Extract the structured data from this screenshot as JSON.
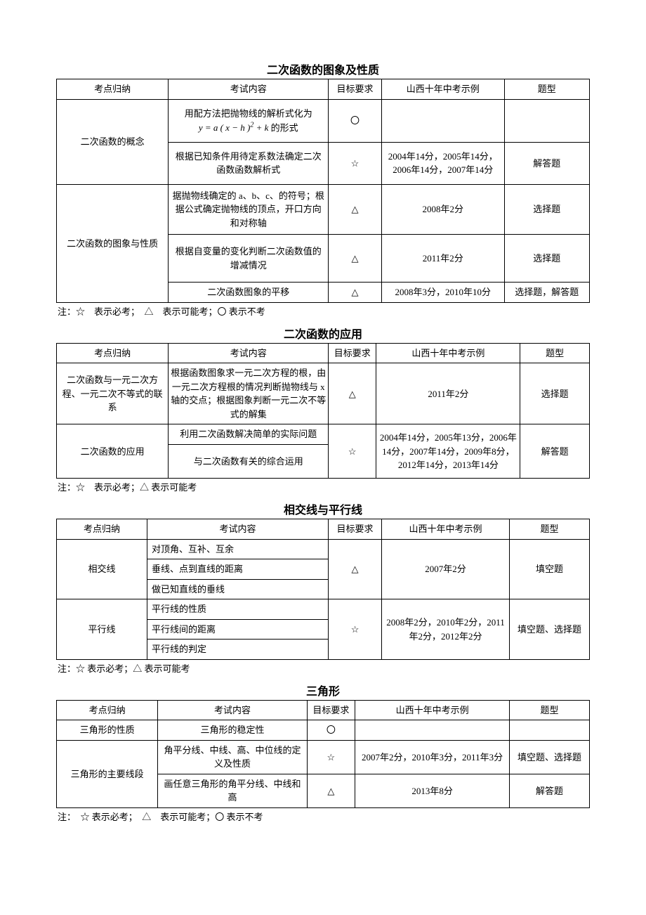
{
  "symbols": {
    "star": "☆",
    "tri": "△",
    "circ": "〇"
  },
  "headers": {
    "c1": "考点归纳",
    "c2": "考试内容",
    "c3": "目标要求",
    "c4": "山西十年中考示例",
    "c5": "题型"
  },
  "section1": {
    "title": "二次函数的图象及性质",
    "note": "注：☆　表示必考；　△　表示可能考；〇 表示不考",
    "rows": [
      {
        "cat": "二次函数的概念",
        "content_html": "用配方法把抛物线的解析式化为<br><span class='formula'>y = a ( x − h )<sup>2</sup> + k</span> 的形式",
        "req": "〇",
        "ex": "",
        "type": ""
      },
      {
        "content": "根据已知条件用待定系数法确定二次函数函数解析式",
        "req": "☆",
        "ex": "2004年14分，2005年14分，2006年14分，2007年14分",
        "type": "解答题"
      },
      {
        "cat": "二次函数的图象与性质",
        "content": "据抛物线确定的 a、b、c、的符号；根据公式确定抛物线的顶点，开口方向和对称轴",
        "req": "△",
        "ex": "2008年2分",
        "type": "选择题"
      },
      {
        "content": "根据自变量的变化判断二次函数值的增减情况",
        "req": "△",
        "ex": "2011年2分",
        "type": "选择题"
      },
      {
        "content": "二次函数图象的平移",
        "req": "△",
        "ex": "2008年3分，2010年10分",
        "type": "选择题，解答题"
      }
    ]
  },
  "section2": {
    "title": "二次函数的应用",
    "note": "注：☆　表示必考；△ 表示可能考",
    "rows": [
      {
        "cat": "二次函数与一元二次方程、一元二次不等式的联系",
        "content": "根据函数图象求一元二次方程的根，由一元二次方程根的情况判断抛物线与 x 轴的交点；根据图象判断一元二次不等式的解集",
        "req": "△",
        "ex": "2011年2分",
        "type": "选择题"
      },
      {
        "cat": "二次函数的应用",
        "content": "利用二次函数解决简单的实际问题",
        "req": "☆",
        "ex": "2004年14分，2005年13分，2006年14分，2007年14分，2009年8分，2012年14分，2013年14分",
        "type": "解答题"
      },
      {
        "content": "与二次函数有关的综合运用"
      }
    ]
  },
  "section3": {
    "title": "相交线与平行线",
    "note": "注：☆ 表示必考；△ 表示可能考",
    "rows": [
      {
        "cat": "相交线",
        "content": "对顶角、互补、互余",
        "req": "△",
        "ex": "2007年2分",
        "type": "填空题"
      },
      {
        "content": "垂线、点到直线的距离"
      },
      {
        "content": "做已知直线的垂线"
      },
      {
        "cat": "平行线",
        "content": "平行线的性质",
        "req": "☆",
        "ex": "2008年2分，2010年2分，2011年2分，2012年2分",
        "type": "填空题、选择题"
      },
      {
        "content": "平行线间的距离"
      },
      {
        "content": "平行线的判定"
      }
    ]
  },
  "section4": {
    "title": "三角形",
    "note": "注：　☆ 表示必考；　△　表示可能考；〇 表示不考",
    "rows": [
      {
        "cat": "三角形的性质",
        "content": "三角形的稳定性",
        "req": "〇",
        "ex": "",
        "type": ""
      },
      {
        "cat": "三角形的主要线段",
        "content": "角平分线、中线、高、中位线的定义及性质",
        "req": "☆",
        "ex": "2007年2分，2010年3分，2011年3分",
        "type": "填空题、选择题"
      },
      {
        "content": "画任意三角形的角平分线、中线和高",
        "req": "△",
        "ex": "2013年8分",
        "type": "解答题"
      }
    ]
  }
}
